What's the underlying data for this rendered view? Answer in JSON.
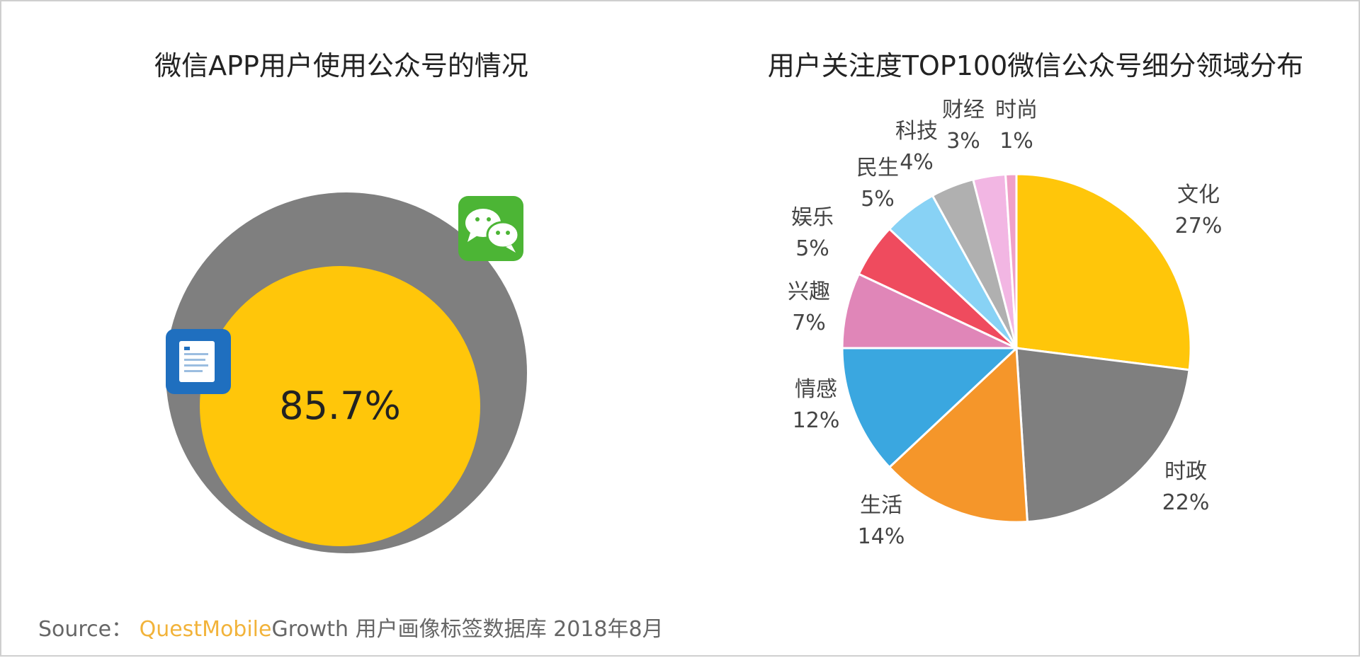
{
  "left_chart": {
    "title": "微信APP用户使用公众号的情况",
    "value_label": "85.7%"
  },
  "right_chart": {
    "title": "用户关注度TOP100微信公众号细分领域分布"
  },
  "chart_data": [
    {
      "type": "area",
      "title": "微信APP用户使用公众号的情况",
      "categories": [
        "公众号",
        "微信"
      ],
      "values": [
        85.7,
        100
      ],
      "unit": "%",
      "colors": {
        "inner": "#ffc60a",
        "outer": "#7f7f7f"
      }
    },
    {
      "type": "pie",
      "title": "用户关注度TOP100微信公众号细分领域分布",
      "categories": [
        "文化",
        "时政",
        "生活",
        "情感",
        "兴趣",
        "娱乐",
        "民生",
        "科技",
        "财经",
        "时尚"
      ],
      "values": [
        27,
        22,
        14,
        12,
        7,
        5,
        5,
        4,
        3,
        1
      ],
      "value_labels": [
        "27%",
        "22%",
        "14%",
        "12%",
        "7%",
        "5%",
        "5%",
        "4%",
        "3%",
        "1%"
      ],
      "colors": [
        "#ffc60a",
        "#7f7f7f",
        "#f5962a",
        "#3aa7e0",
        "#e086b8",
        "#ef4b5e",
        "#88d2f5",
        "#b0b0b0",
        "#f2b6e3",
        "#f0a0c8"
      ]
    }
  ],
  "source": {
    "prefix": "Source：",
    "brand": "QuestMobile",
    "suffix": "Growth 用户画像标签数据库 2018年8月"
  },
  "icons": [
    "wechat-logo-icon",
    "official-account-icon"
  ]
}
